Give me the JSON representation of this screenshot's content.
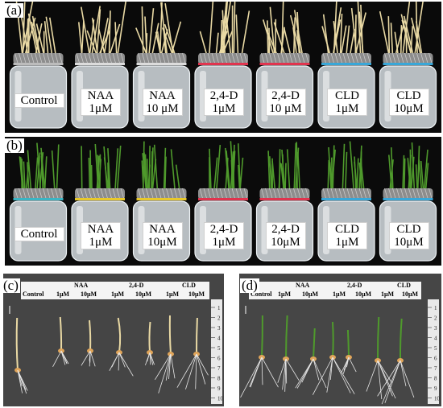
{
  "panel_a": {
    "label": "(a)",
    "jars": [
      {
        "line1": "Control",
        "line2": ""
      },
      {
        "line1": "NAA",
        "line2": "1μM"
      },
      {
        "line1": "NAA",
        "line2": "10 μM"
      },
      {
        "line1": "2,4-D",
        "line2": "1μM"
      },
      {
        "line1": "2,4-D",
        "line2": "10 μM"
      },
      {
        "line1": "CLD",
        "line2": "1μM"
      },
      {
        "line1": "CLD",
        "line2": "10μM"
      }
    ]
  },
  "panel_b": {
    "label": "(b)",
    "jars": [
      {
        "line1": "Control",
        "line2": ""
      },
      {
        "line1": "NAA",
        "line2": "1μM"
      },
      {
        "line1": "NAA",
        "line2": "10μM"
      },
      {
        "line1": "2,4-D",
        "line2": "1μM"
      },
      {
        "line1": "2,4-D",
        "line2": "10μM"
      },
      {
        "line1": "CLD",
        "line2": "1μM"
      },
      {
        "line1": "CLD",
        "line2": "10μM"
      }
    ]
  },
  "panel_c": {
    "label": "(c)",
    "header": {
      "control": "Control",
      "g1": "NAA",
      "g2": "2,4-D",
      "g3": "CLD",
      "c1": "1μM",
      "c2": "10μM"
    },
    "ruler": [
      "1",
      "2",
      "3",
      "4",
      "5",
      "6",
      "7",
      "8",
      "9",
      "10"
    ]
  },
  "panel_d": {
    "label": "(d)",
    "header": {
      "control": "Control",
      "g1": "NAA",
      "g2": "2,4-D",
      "g3": "CLD",
      "c1": "1μM",
      "c2": "10μM"
    },
    "ruler": [
      "1",
      "2",
      "3",
      "4",
      "5",
      "6",
      "7",
      "8",
      "9",
      "10"
    ]
  },
  "colors": {
    "band_blue": "#38a7d8",
    "band_red": "#e0344e",
    "band_yellow": "#e8c82a",
    "band_teal": "#3bb5c4",
    "seedling_etiolated": "#e9d9a4",
    "seedling_green": "#4f9a2c"
  }
}
